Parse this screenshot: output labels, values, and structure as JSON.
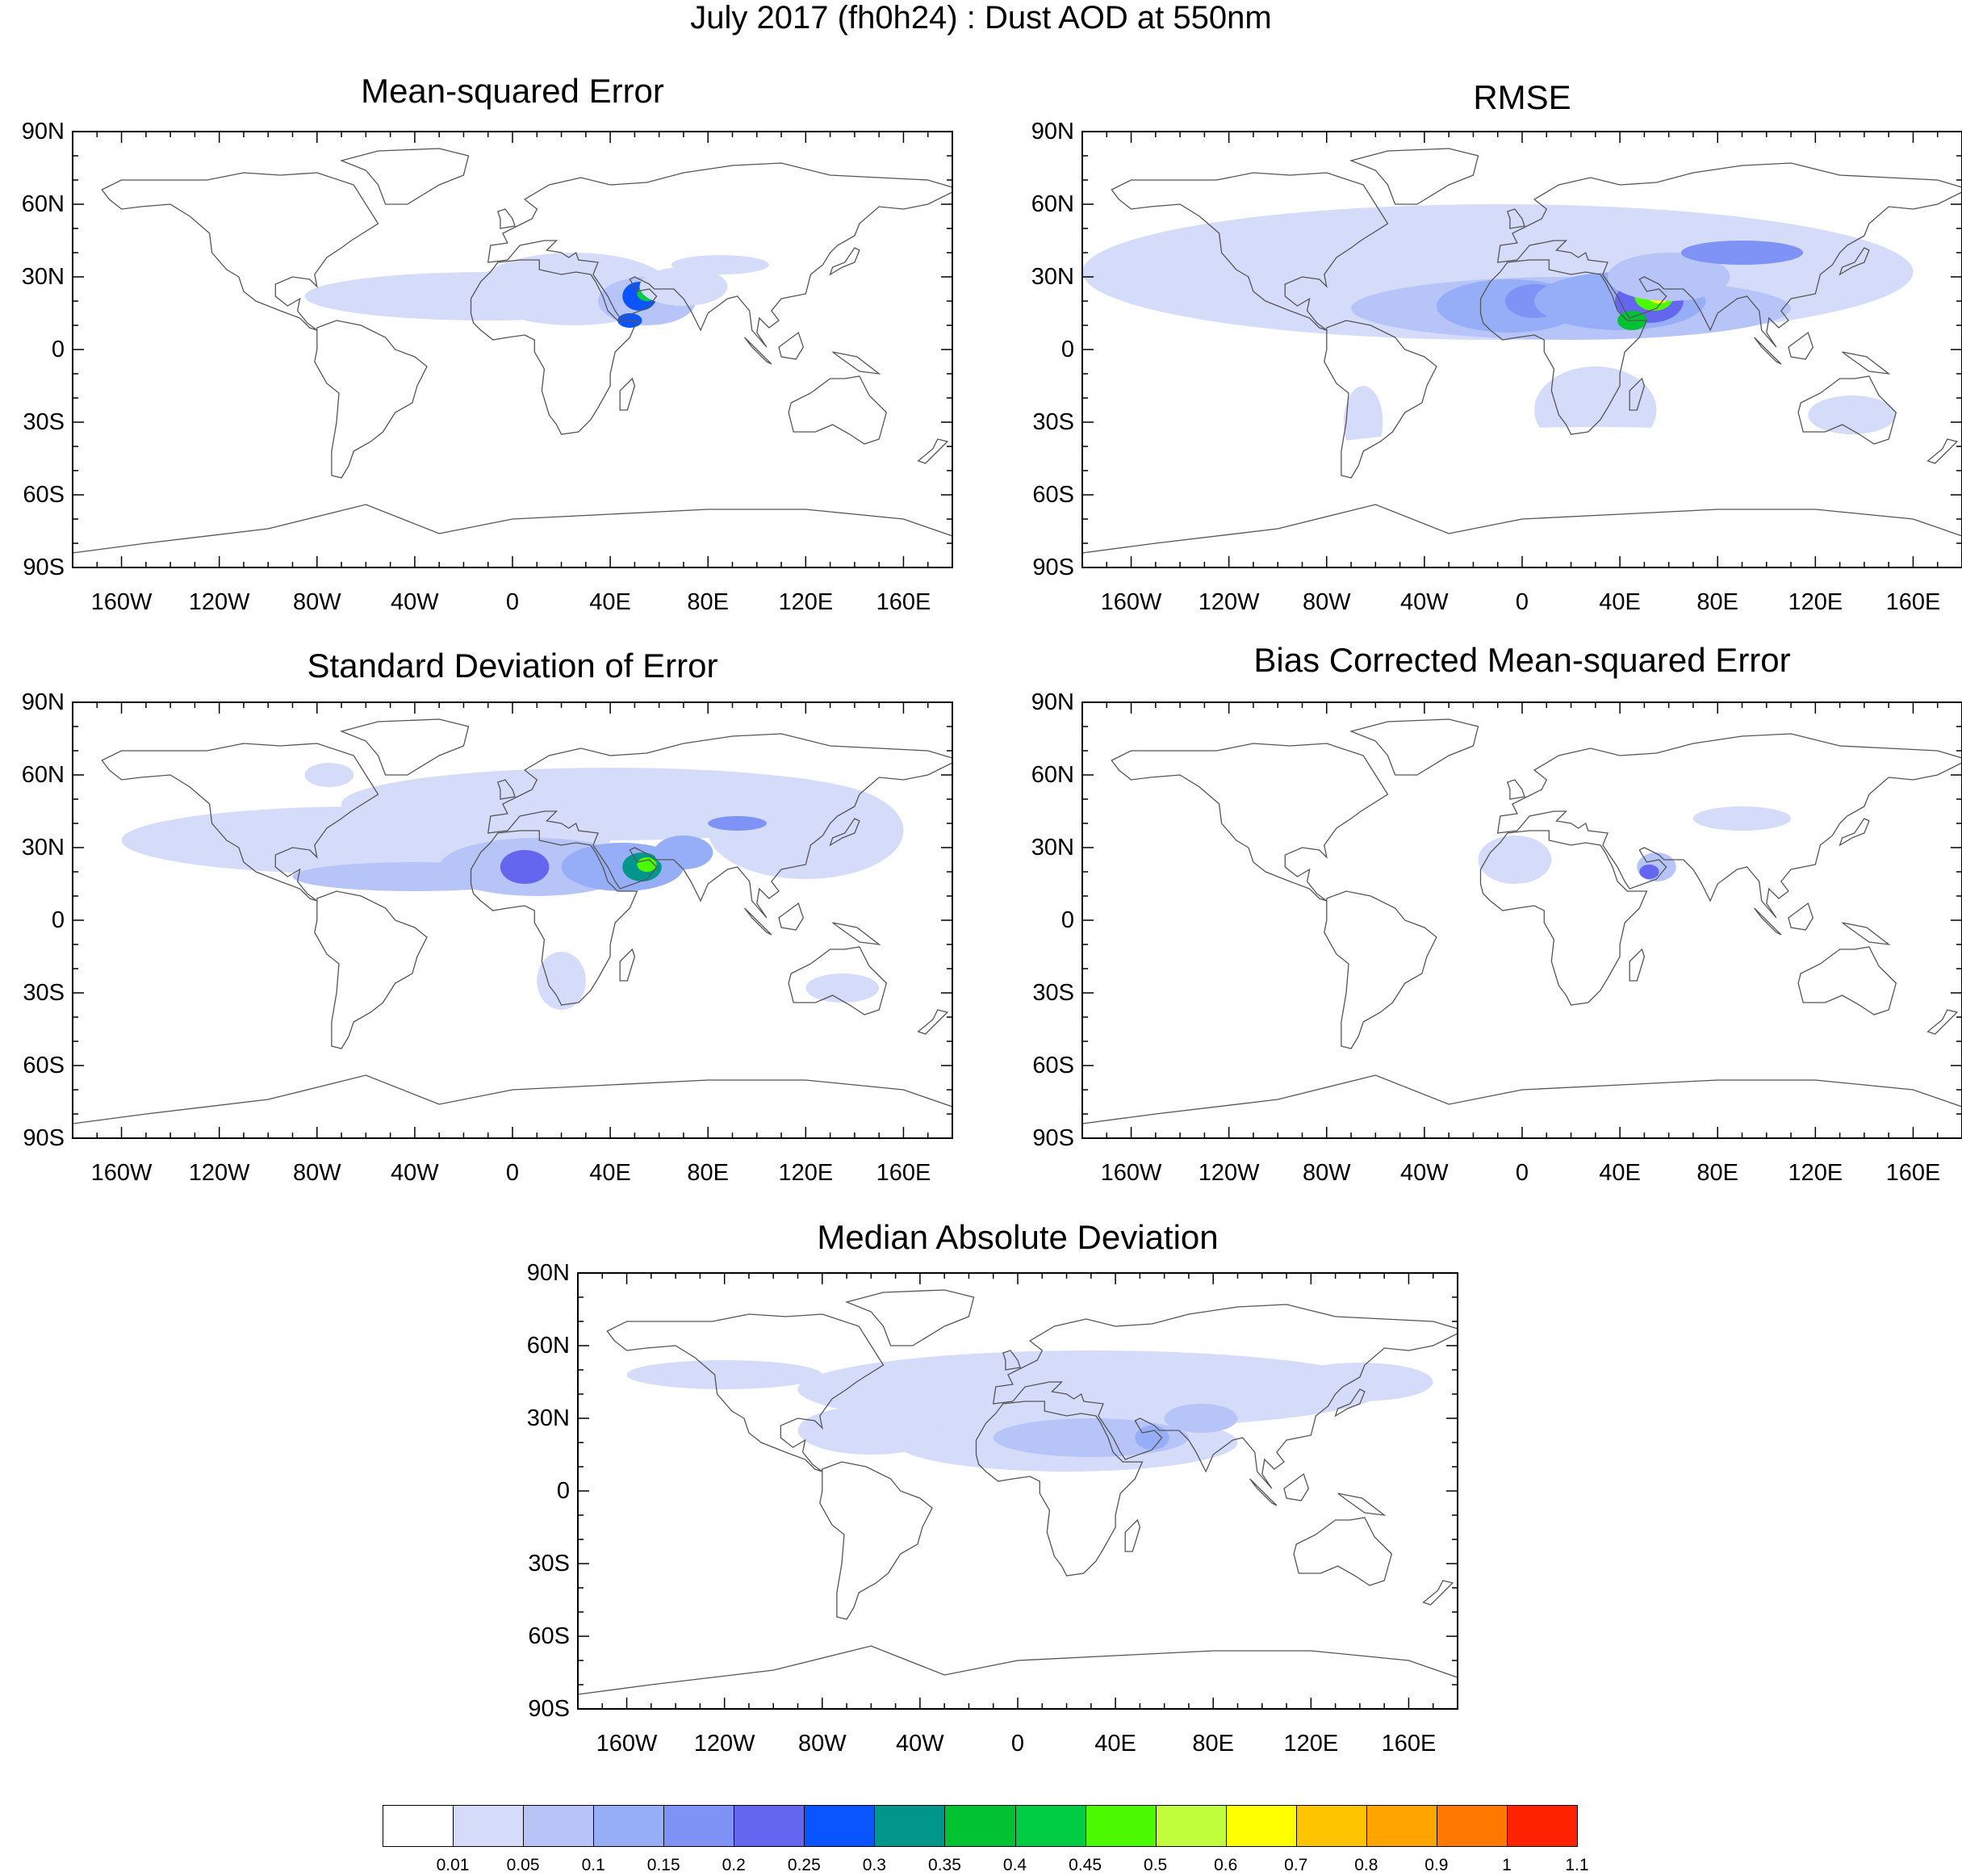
{
  "title": "July 2017 (fh0h24) : Dust AOD at 550nm",
  "lat_ticks": [
    "90N",
    "60N",
    "30N",
    "0",
    "30S",
    "60S",
    "90S"
  ],
  "lon_ticks": [
    "160W",
    "120W",
    "80W",
    "40W",
    "0",
    "40E",
    "80E",
    "120E",
    "160E"
  ],
  "panels": [
    {
      "title": "Mean-squared Error"
    },
    {
      "title": "RMSE"
    },
    {
      "title": "Standard Deviation of Error"
    },
    {
      "title": "Bias Corrected Mean-squared Error"
    },
    {
      "title": "Median Absolute Deviation"
    }
  ],
  "colorbar": {
    "labels": [
      "0.01",
      "0.05",
      "0.1",
      "0.15",
      "0.2",
      "0.25",
      "0.3",
      "0.35",
      "0.4",
      "0.45",
      "0.5",
      "0.6",
      "0.7",
      "0.8",
      "0.9",
      "1",
      "1.1"
    ],
    "colors": [
      "#ffffff",
      "#d5dcfa",
      "#b6c4f7",
      "#96aef7",
      "#7f92f5",
      "#6466ef",
      "#0a55ff",
      "#00968c",
      "#00c233",
      "#00cc44",
      "#4cfa00",
      "#c1ff3c",
      "#ffff00",
      "#ffc400",
      "#ffa400",
      "#ff7800",
      "#ff2200"
    ]
  },
  "chart_data": {
    "type": "heatmap",
    "variable": "Dust AOD at 550nm",
    "xlim": [
      -180,
      180
    ],
    "ylim": [
      -90,
      90
    ],
    "panels": [
      {
        "name": "Mean-squared Error",
        "max_region": "Arabian Peninsula",
        "max_value_range": [
          0.4,
          0.6
        ]
      },
      {
        "name": "RMSE",
        "max_region": "Arabian Peninsula",
        "max_value_range": [
          0.6,
          0.8
        ]
      },
      {
        "name": "Standard Deviation of Error",
        "max_region": "Arabian Peninsula",
        "max_value_range": [
          0.4,
          0.5
        ]
      },
      {
        "name": "Bias Corrected Mean-squared Error",
        "max_region": "Arabian Peninsula",
        "max_value_range": [
          0.1,
          0.2
        ]
      },
      {
        "name": "Median Absolute Deviation",
        "max_region": "Arabian Peninsula",
        "max_value_range": [
          0.15,
          0.2
        ]
      }
    ]
  }
}
